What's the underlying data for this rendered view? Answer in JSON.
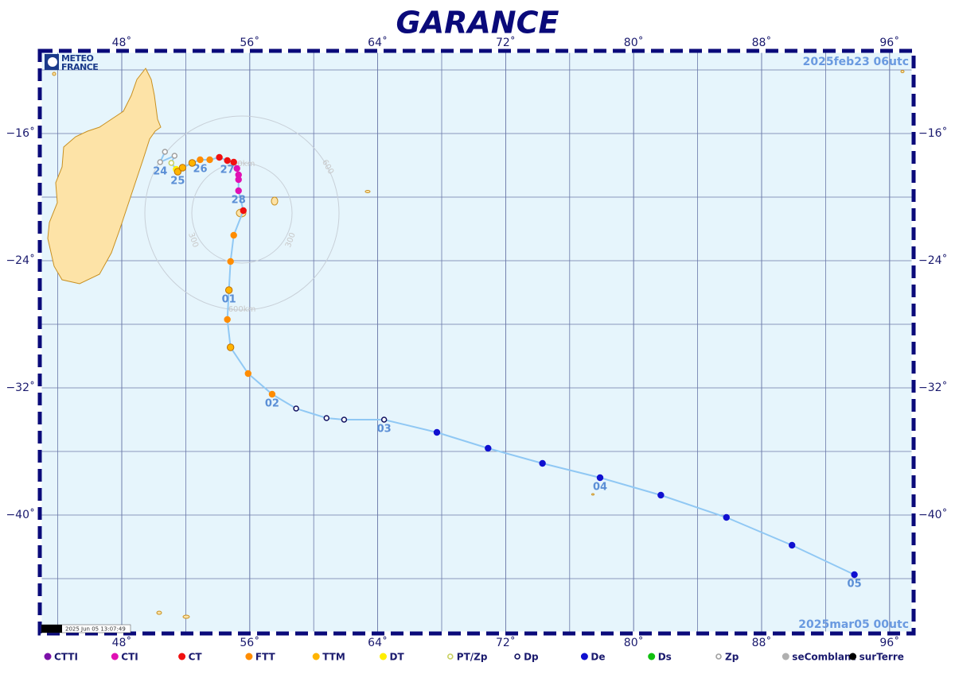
{
  "title": "GARANCE",
  "logo": "METEO FRANCE",
  "date_start": "2025feb23  06utc",
  "date_end": "2025mar05  00utc",
  "stamp": "2025 Jun 05 13:07:49",
  "lon_ticks": [
    {
      "value": 48,
      "label": "48˚"
    },
    {
      "value": 56,
      "label": "56˚"
    },
    {
      "value": 64,
      "label": "64˚"
    },
    {
      "value": 72,
      "label": "72˚"
    },
    {
      "value": 80,
      "label": "80˚"
    },
    {
      "value": 88,
      "label": "88˚"
    },
    {
      "value": 96,
      "label": "96˚"
    }
  ],
  "lat_ticks": [
    {
      "value": -16,
      "label": "−16˚"
    },
    {
      "value": -24,
      "label": "−24˚"
    },
    {
      "value": -32,
      "label": "−32˚"
    },
    {
      "value": -40,
      "label": "−40˚"
    }
  ],
  "range_labels": [
    "300",
    "300",
    "600",
    "300km",
    "600km"
  ],
  "legend": [
    {
      "label": "CTTI",
      "color": "#7b10a8",
      "style": "filled"
    },
    {
      "label": "CTI",
      "color": "#e010b4",
      "style": "filled"
    },
    {
      "label": "CT",
      "color": "#f01010",
      "style": "filled"
    },
    {
      "label": "FTT",
      "color": "#ff8c00",
      "style": "filled"
    },
    {
      "label": "TTM",
      "color": "#ffb400",
      "style": "filled"
    },
    {
      "label": "DT",
      "color": "#ffee00",
      "style": "filled"
    },
    {
      "label": "PT/Zp",
      "color": "#c8d060",
      "style": "open"
    },
    {
      "label": "Dp",
      "color": "#101060",
      "style": "open"
    },
    {
      "label": "De",
      "color": "#1010d0",
      "style": "filled"
    },
    {
      "label": "Ds",
      "color": "#10c010",
      "style": "filled"
    },
    {
      "label": "Zp",
      "color": "#a0a0a0",
      "style": "open"
    },
    {
      "label": "seComblant",
      "color": "#b0b0b0",
      "style": "filled"
    },
    {
      "label": "surTerre",
      "color": "#000000",
      "style": "filled"
    }
  ],
  "track": {
    "points": [
      {
        "lon": 50.7,
        "lat": -17.15,
        "type": "Zp"
      },
      {
        "lon": 50.4,
        "lat": -17.8,
        "type": "Zp",
        "label": "24"
      },
      {
        "lon": 51.3,
        "lat": -17.4,
        "type": "Zp"
      },
      {
        "lon": 51.1,
        "lat": -17.85,
        "type": "PT/Zp"
      },
      {
        "lon": 51.4,
        "lat": -18.25,
        "type": "DT"
      },
      {
        "lon": 51.5,
        "lat": -18.4,
        "type": "TTM",
        "label": "25"
      },
      {
        "lon": 51.8,
        "lat": -18.15,
        "type": "TTM"
      },
      {
        "lon": 52.4,
        "lat": -17.85,
        "type": "TTM"
      },
      {
        "lon": 52.9,
        "lat": -17.65,
        "type": "FTT",
        "label": "26"
      },
      {
        "lon": 53.5,
        "lat": -17.65,
        "type": "FTT"
      },
      {
        "lon": 54.1,
        "lat": -17.5,
        "type": "CT"
      },
      {
        "lon": 54.6,
        "lat": -17.7,
        "type": "CT",
        "label": "27"
      },
      {
        "lon": 55.0,
        "lat": -17.8,
        "type": "CT"
      },
      {
        "lon": 55.2,
        "lat": -18.2,
        "type": "CTI"
      },
      {
        "lon": 55.3,
        "lat": -18.6,
        "type": "CTI"
      },
      {
        "lon": 55.3,
        "lat": -18.9,
        "type": "CTI"
      },
      {
        "lon": 55.3,
        "lat": -19.6,
        "type": "CTI",
        "label": "28"
      },
      {
        "lon": 55.6,
        "lat": -20.85,
        "type": "CT"
      },
      {
        "lon": 55.0,
        "lat": -22.4,
        "type": "FTT"
      },
      {
        "lon": 54.8,
        "lat": -24.05,
        "type": "FTT"
      },
      {
        "lon": 54.7,
        "lat": -25.85,
        "type": "TTM",
        "label": "01"
      },
      {
        "lon": 54.6,
        "lat": -27.7,
        "type": "FTT"
      },
      {
        "lon": 54.8,
        "lat": -29.45,
        "type": "TTM"
      },
      {
        "lon": 55.9,
        "lat": -31.1,
        "type": "FTT"
      },
      {
        "lon": 57.4,
        "lat": -32.4,
        "type": "FTT",
        "label": "02"
      },
      {
        "lon": 58.9,
        "lat": -33.3,
        "type": "Dp"
      },
      {
        "lon": 60.8,
        "lat": -33.9,
        "type": "Dp"
      },
      {
        "lon": 61.9,
        "lat": -34.0,
        "type": "Dp"
      },
      {
        "lon": 64.4,
        "lat": -34.0,
        "type": "Dp",
        "label": "03"
      },
      {
        "lon": 67.7,
        "lat": -34.8,
        "type": "De"
      },
      {
        "lon": 70.9,
        "lat": -35.8,
        "type": "De"
      },
      {
        "lon": 74.3,
        "lat": -36.75,
        "type": "De"
      },
      {
        "lon": 77.9,
        "lat": -37.65,
        "type": "De",
        "label": "04"
      },
      {
        "lon": 81.7,
        "lat": -38.75,
        "type": "De"
      },
      {
        "lon": 85.8,
        "lat": -40.15,
        "type": "De"
      },
      {
        "lon": 89.9,
        "lat": -41.9,
        "type": "De"
      },
      {
        "lon": 93.8,
        "lat": -43.75,
        "type": "De",
        "label": "05"
      }
    ]
  }
}
